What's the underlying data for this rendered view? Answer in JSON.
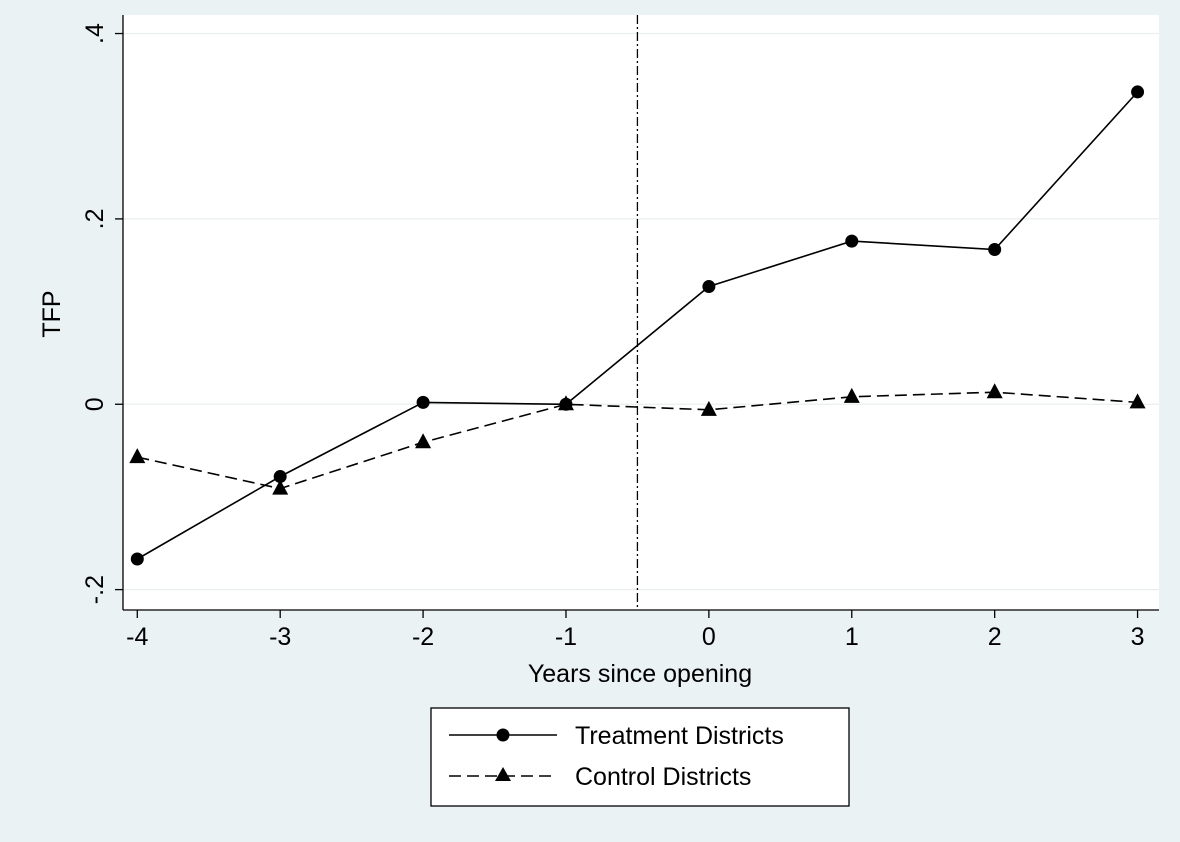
{
  "chart_data": {
    "type": "line",
    "xlabel": "Years since opening",
    "ylabel": "TFP",
    "x": [
      -4,
      -3,
      -2,
      -1,
      0,
      1,
      2,
      3
    ],
    "xlim": [
      -4.1,
      3.15
    ],
    "ylim": [
      -0.222,
      0.42
    ],
    "x_ticks": [
      -4,
      -3,
      -2,
      -1,
      0,
      1,
      2,
      3
    ],
    "x_tick_labels": [
      "-4",
      "-3",
      "-2",
      "-1",
      "0",
      "1",
      "2",
      "3"
    ],
    "y_ticks": [
      -0.2,
      0,
      0.2,
      0.4
    ],
    "y_tick_labels": [
      "-.2",
      "0",
      ".2",
      ".4"
    ],
    "grid": true,
    "reference_line_x": -0.5,
    "legend_position": "bottom-center",
    "series": [
      {
        "name": "Treatment Districts",
        "values": [
          -0.167,
          -0.078,
          0.002,
          0.0,
          0.127,
          0.176,
          0.167,
          0.337
        ],
        "line_style": "solid",
        "marker": "circle"
      },
      {
        "name": "Control Districts",
        "values": [
          -0.057,
          -0.091,
          -0.041,
          0.0,
          -0.006,
          0.008,
          0.013,
          0.002
        ],
        "line_style": "dashed",
        "marker": "triangle"
      }
    ],
    "colors": {
      "background": "#eaf2f3",
      "plot_area": "#ffffff",
      "grid": "#e9eeef",
      "ink": "#000000"
    }
  }
}
